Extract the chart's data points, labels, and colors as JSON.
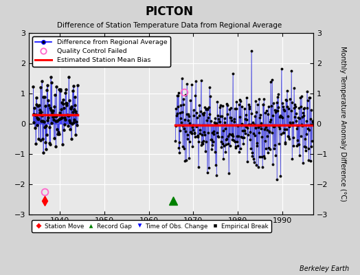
{
  "title": "PICTON",
  "subtitle": "Difference of Station Temperature Data from Regional Average",
  "ylabel": "Monthly Temperature Anomaly Difference (°C)",
  "xlim": [
    1933,
    1997
  ],
  "ylim": [
    -3,
    3
  ],
  "yticks": [
    -3,
    -2,
    -1,
    0,
    1,
    2,
    3
  ],
  "xticks": [
    1940,
    1950,
    1960,
    1970,
    1980,
    1990
  ],
  "fig_bg": "#d4d4d4",
  "plot_bg": "#e8e8e8",
  "segment1_start": 1934,
  "segment1_end": 1944,
  "segment1_bias": 0.3,
  "segment2_start": 1966,
  "segment2_end": 1997,
  "segment2_bias": -0.05,
  "red_line1_x": [
    1934,
    1944
  ],
  "red_line1_y": [
    0.3,
    0.3
  ],
  "red_line2_x": [
    1966,
    1996.9
  ],
  "red_line2_y": [
    -0.05,
    -0.05
  ],
  "qc_fail1_x": 1936.5,
  "qc_fail1_y": -2.25,
  "qc_fail2_x": 1968.0,
  "qc_fail2_y": 1.05,
  "station_move_x": 1936.5,
  "station_move_y": -2.55,
  "record_gap_x": 1965.5,
  "record_gap_y": -2.55
}
